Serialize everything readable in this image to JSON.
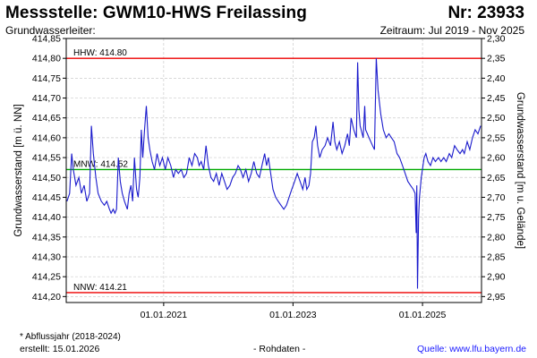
{
  "header": {
    "title": "Messstelle: GWM10-HWS Freilassing",
    "number": "Nr: 23933",
    "aquifer_label": "Grundwasserleiter:",
    "period": "Zeitraum: Jul 2019 - Nov 2025"
  },
  "footer": {
    "footnote": "* Abflussjahr (2018-2024)",
    "created": "erstellt:  15.01.2026",
    "raw_data": "- Rohdaten -",
    "source": "Quelle: www.lfu.bayern.de"
  },
  "colors": {
    "series": "#1a1acc",
    "hhw": "#ee0000",
    "nnw": "#ee0000",
    "mnw": "#00aa00",
    "grid": "#cccccc"
  },
  "chart_data": {
    "type": "line",
    "title": "",
    "ylabel": "Grundwasserstand [m ü. NN]",
    "y2label": "Grundwasserstand [m u. Gelände]",
    "ylim": [
      414.185,
      414.85
    ],
    "yticks": [
      "414,85",
      "414,80",
      "414,75",
      "414,70",
      "414,65",
      "414,60",
      "414,55",
      "414,50",
      "414,45",
      "414,40",
      "414,35",
      "414,30",
      "414,25",
      "414,20"
    ],
    "y2ticks": [
      "2,30",
      "2,35",
      "2,40",
      "2,45",
      "2,50",
      "2,55",
      "2,60",
      "2,65",
      "2,70",
      "2,75",
      "2,80",
      "2,85",
      "2,90",
      "2,95"
    ],
    "xlim": [
      "2019-07-01",
      "2025-11-30"
    ],
    "xticks": [
      {
        "date": "2021-01-01",
        "label": "01.01.2021"
      },
      {
        "date": "2023-01-01",
        "label": "01.01.2023"
      },
      {
        "date": "2025-01-01",
        "label": "01.01.2025"
      }
    ],
    "reference_lines": [
      {
        "name": "HHW",
        "label": "HHW: 414.80",
        "value": 414.8
      },
      {
        "name": "MNW",
        "label": "MNW: 414.52",
        "value": 414.52
      },
      {
        "name": "NNW",
        "label": "NNW: 414.21",
        "value": 414.21
      }
    ],
    "grid": true,
    "series": [
      {
        "points": [
          [
            "2019-07-05",
            414.44
          ],
          [
            "2019-07-20",
            414.46
          ],
          [
            "2019-08-01",
            414.56
          ],
          [
            "2019-08-10",
            414.52
          ],
          [
            "2019-08-25",
            414.48
          ],
          [
            "2019-09-10",
            414.5
          ],
          [
            "2019-09-25",
            414.46
          ],
          [
            "2019-10-10",
            414.48
          ],
          [
            "2019-10-25",
            414.44
          ],
          [
            "2019-11-10",
            414.46
          ],
          [
            "2019-11-20",
            414.63
          ],
          [
            "2019-12-01",
            414.56
          ],
          [
            "2019-12-15",
            414.5
          ],
          [
            "2019-12-28",
            414.46
          ],
          [
            "2020-01-15",
            414.44
          ],
          [
            "2020-02-01",
            414.43
          ],
          [
            "2020-02-15",
            414.44
          ],
          [
            "2020-03-01",
            414.42
          ],
          [
            "2020-03-10",
            414.41
          ],
          [
            "2020-03-22",
            414.42
          ],
          [
            "2020-04-01",
            414.41
          ],
          [
            "2020-04-10",
            414.42
          ],
          [
            "2020-04-20",
            414.55
          ],
          [
            "2020-05-01",
            414.49
          ],
          [
            "2020-05-12",
            414.46
          ],
          [
            "2020-05-25",
            414.44
          ],
          [
            "2020-06-10",
            414.42
          ],
          [
            "2020-06-20",
            414.46
          ],
          [
            "2020-06-30",
            414.48
          ],
          [
            "2020-07-10",
            414.44
          ],
          [
            "2020-07-20",
            414.55
          ],
          [
            "2020-08-01",
            414.47
          ],
          [
            "2020-08-10",
            414.45
          ],
          [
            "2020-08-20",
            414.5
          ],
          [
            "2020-08-28",
            414.62
          ],
          [
            "2020-09-05",
            414.55
          ],
          [
            "2020-09-15",
            414.62
          ],
          [
            "2020-09-25",
            414.68
          ],
          [
            "2020-10-05",
            414.6
          ],
          [
            "2020-10-15",
            414.57
          ],
          [
            "2020-10-28",
            414.54
          ],
          [
            "2020-11-10",
            414.52
          ],
          [
            "2020-11-25",
            414.56
          ],
          [
            "2020-12-10",
            414.53
          ],
          [
            "2020-12-25",
            414.55
          ],
          [
            "2021-01-10",
            414.52
          ],
          [
            "2021-01-25",
            414.55
          ],
          [
            "2021-02-10",
            414.53
          ],
          [
            "2021-02-25",
            414.5
          ],
          [
            "2021-03-10",
            414.52
          ],
          [
            "2021-03-25",
            414.51
          ],
          [
            "2021-04-10",
            414.52
          ],
          [
            "2021-04-25",
            414.5
          ],
          [
            "2021-05-10",
            414.51
          ],
          [
            "2021-05-25",
            414.55
          ],
          [
            "2021-06-10",
            414.53
          ],
          [
            "2021-06-25",
            414.56
          ],
          [
            "2021-07-10",
            414.55
          ],
          [
            "2021-07-20",
            414.53
          ],
          [
            "2021-08-01",
            414.54
          ],
          [
            "2021-08-15",
            414.52
          ],
          [
            "2021-08-28",
            414.58
          ],
          [
            "2021-09-10",
            414.53
          ],
          [
            "2021-09-25",
            414.5
          ],
          [
            "2021-10-10",
            414.49
          ],
          [
            "2021-10-25",
            414.51
          ],
          [
            "2021-11-10",
            414.48
          ],
          [
            "2021-11-25",
            414.51
          ],
          [
            "2021-12-10",
            414.49
          ],
          [
            "2021-12-25",
            414.47
          ],
          [
            "2022-01-10",
            414.48
          ],
          [
            "2022-01-25",
            414.5
          ],
          [
            "2022-02-10",
            414.51
          ],
          [
            "2022-02-25",
            414.53
          ],
          [
            "2022-03-10",
            414.52
          ],
          [
            "2022-03-25",
            414.5
          ],
          [
            "2022-04-10",
            414.52
          ],
          [
            "2022-04-25",
            414.49
          ],
          [
            "2022-05-10",
            414.51
          ],
          [
            "2022-05-25",
            414.54
          ],
          [
            "2022-06-10",
            414.51
          ],
          [
            "2022-06-25",
            414.5
          ],
          [
            "2022-07-10",
            414.53
          ],
          [
            "2022-07-25",
            414.56
          ],
          [
            "2022-08-05",
            414.53
          ],
          [
            "2022-08-15",
            414.55
          ],
          [
            "2022-08-25",
            414.52
          ],
          [
            "2022-09-10",
            414.47
          ],
          [
            "2022-09-25",
            414.45
          ],
          [
            "2022-10-10",
            414.44
          ],
          [
            "2022-10-25",
            414.43
          ],
          [
            "2022-11-10",
            414.42
          ],
          [
            "2022-11-25",
            414.43
          ],
          [
            "2022-12-10",
            414.45
          ],
          [
            "2022-12-25",
            414.47
          ],
          [
            "2023-01-10",
            414.49
          ],
          [
            "2023-01-25",
            414.51
          ],
          [
            "2023-02-10",
            414.49
          ],
          [
            "2023-02-25",
            414.47
          ],
          [
            "2023-03-10",
            414.5
          ],
          [
            "2023-03-20",
            414.47
          ],
          [
            "2023-04-01",
            414.48
          ],
          [
            "2023-04-10",
            414.51
          ],
          [
            "2023-04-20",
            414.59
          ],
          [
            "2023-05-01",
            414.6
          ],
          [
            "2023-05-10",
            414.63
          ],
          [
            "2023-05-20",
            414.58
          ],
          [
            "2023-06-01",
            414.55
          ],
          [
            "2023-06-15",
            414.57
          ],
          [
            "2023-07-01",
            414.58
          ],
          [
            "2023-07-15",
            414.6
          ],
          [
            "2023-08-01",
            414.58
          ],
          [
            "2023-08-15",
            414.64
          ],
          [
            "2023-08-25",
            414.59
          ],
          [
            "2023-09-05",
            414.57
          ],
          [
            "2023-09-20",
            414.59
          ],
          [
            "2023-10-05",
            414.56
          ],
          [
            "2023-10-20",
            414.58
          ],
          [
            "2023-11-05",
            414.61
          ],
          [
            "2023-11-15",
            414.58
          ],
          [
            "2023-11-25",
            414.65
          ],
          [
            "2023-12-10",
            414.62
          ],
          [
            "2023-12-25",
            414.6
          ],
          [
            "2024-01-01",
            414.79
          ],
          [
            "2024-01-08",
            414.67
          ],
          [
            "2024-01-15",
            414.63
          ],
          [
            "2024-02-01",
            414.6
          ],
          [
            "2024-02-10",
            414.68
          ],
          [
            "2024-02-15",
            414.62
          ],
          [
            "2024-02-25",
            414.61
          ],
          [
            "2024-03-05",
            414.6
          ],
          [
            "2024-03-15",
            414.59
          ],
          [
            "2024-03-25",
            414.58
          ],
          [
            "2024-04-05",
            414.57
          ],
          [
            "2024-04-15",
            414.8
          ],
          [
            "2024-04-25",
            414.72
          ],
          [
            "2024-05-10",
            414.66
          ],
          [
            "2024-05-25",
            414.62
          ],
          [
            "2024-06-10",
            414.6
          ],
          [
            "2024-06-25",
            414.61
          ],
          [
            "2024-07-10",
            414.6
          ],
          [
            "2024-07-25",
            414.59
          ],
          [
            "2024-08-10",
            414.56
          ],
          [
            "2024-08-25",
            414.55
          ],
          [
            "2024-09-10",
            414.53
          ],
          [
            "2024-09-25",
            414.51
          ],
          [
            "2024-10-10",
            414.49
          ],
          [
            "2024-10-25",
            414.48
          ],
          [
            "2024-11-10",
            414.47
          ],
          [
            "2024-11-20",
            414.46
          ],
          [
            "2024-11-26",
            414.36
          ],
          [
            "2024-11-30",
            414.48
          ],
          [
            "2024-12-04",
            414.22
          ],
          [
            "2024-12-10",
            414.4
          ],
          [
            "2024-12-15",
            414.45
          ],
          [
            "2024-12-25",
            414.5
          ],
          [
            "2025-01-10",
            414.55
          ],
          [
            "2025-01-20",
            414.56
          ],
          [
            "2025-02-01",
            414.54
          ],
          [
            "2025-02-15",
            414.53
          ],
          [
            "2025-03-01",
            414.55
          ],
          [
            "2025-03-15",
            414.54
          ],
          [
            "2025-04-01",
            414.55
          ],
          [
            "2025-04-15",
            414.54
          ],
          [
            "2025-05-01",
            414.55
          ],
          [
            "2025-05-15",
            414.54
          ],
          [
            "2025-06-01",
            414.56
          ],
          [
            "2025-06-15",
            414.55
          ],
          [
            "2025-07-01",
            414.58
          ],
          [
            "2025-07-15",
            414.57
          ],
          [
            "2025-08-01",
            414.56
          ],
          [
            "2025-08-15",
            414.57
          ],
          [
            "2025-08-25",
            414.56
          ],
          [
            "2025-09-10",
            414.59
          ],
          [
            "2025-09-25",
            414.57
          ],
          [
            "2025-10-10",
            414.6
          ],
          [
            "2025-10-25",
            414.62
          ],
          [
            "2025-11-10",
            414.61
          ],
          [
            "2025-11-25",
            414.63
          ]
        ]
      }
    ]
  }
}
